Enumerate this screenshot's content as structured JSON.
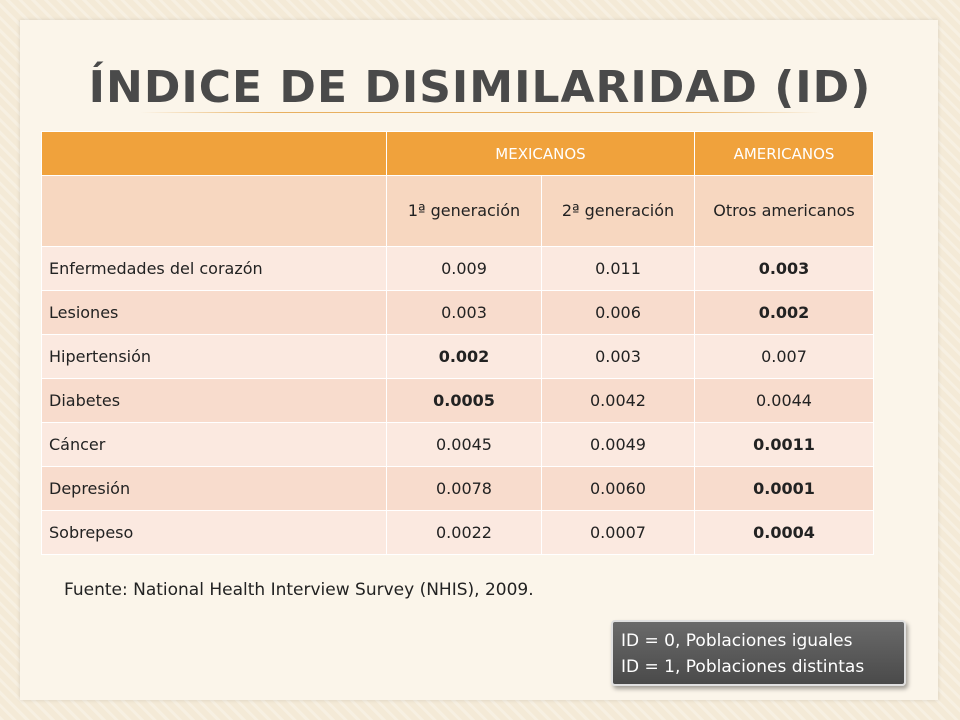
{
  "title": "Índice de Disimilaridad (ID)",
  "table": {
    "group_headers": [
      "MEXICANOS",
      "AMERICANOS"
    ],
    "sub_headers": [
      "1ª generación",
      "2ª generación",
      "Otros americanos"
    ],
    "rows": [
      {
        "label": "Enfermedades del corazón",
        "values": [
          "0.009",
          "0.011",
          "0.003"
        ]
      },
      {
        "label": "Lesiones",
        "values": [
          "0.003",
          "0.006",
          "0.002"
        ]
      },
      {
        "label": "Hipertensión",
        "values": [
          "0.002",
          "0.003",
          "0.007"
        ]
      },
      {
        "label": "Diabetes",
        "values": [
          "0.0005",
          "0.0042",
          "0.0044"
        ]
      },
      {
        "label": "Cáncer",
        "values": [
          "0.0045",
          "0.0049",
          "0.0011"
        ]
      },
      {
        "label": "Depresión",
        "values": [
          "0.0078",
          "0.0060",
          "0.0001"
        ]
      },
      {
        "label": "Sobrepeso",
        "values": [
          "0.0022",
          "0.0007",
          "0.0004"
        ]
      }
    ]
  },
  "source": "Fuente: National Health Interview Survey (NHIS), 2009.",
  "legend": {
    "line1": "ID = 0, Poblaciones iguales",
    "line2": "ID = 1, Poblaciones distintas"
  },
  "colors": {
    "header_orange": "#f0a23c",
    "row_light": "#fbe9e0",
    "row_dark": "#f8dccd"
  }
}
